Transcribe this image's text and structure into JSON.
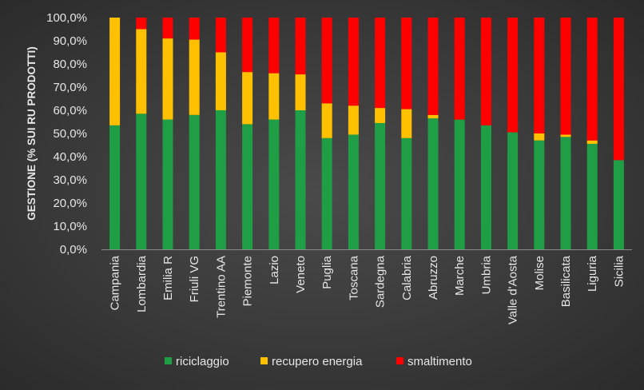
{
  "chart_data": {
    "type": "bar",
    "stacked": true,
    "title": "",
    "xlabel": "",
    "ylabel": "GESTIONE (% SUI RU PRODOTTI)",
    "ylim": [
      0,
      100
    ],
    "yticks": [
      "0,0%",
      "10,0%",
      "20,0%",
      "30,0%",
      "40,0%",
      "50,0%",
      "60,0%",
      "70,0%",
      "80,0%",
      "90,0%",
      "100,0%"
    ],
    "categories": [
      "Campania",
      "Lombardia",
      "Emilia R",
      "Friuli VG",
      "Trentino AA",
      "Piemonte",
      "Lazio",
      "Veneto",
      "Puglia",
      "Toscana",
      "Sardegna",
      "Calabria",
      "Abruzzo",
      "Marche",
      "Umbria",
      "Valle d'Aosta",
      "Molise",
      "Basilicata",
      "Liguria",
      "Sicilia"
    ],
    "series": [
      {
        "name": "riciclaggio",
        "color": "#1f9e46",
        "values": [
          53.5,
          58.5,
          56,
          58,
          60,
          54,
          56,
          60,
          48,
          49.5,
          54.5,
          48,
          56.5,
          56,
          53.5,
          50.5,
          47,
          48.5,
          45.5,
          38.5
        ]
      },
      {
        "name": "recupero energia",
        "color": "#ffc000",
        "values": [
          46.5,
          36.5,
          35,
          32.5,
          25,
          22.5,
          20,
          15.5,
          15,
          12.5,
          6.5,
          12.5,
          1.5,
          0,
          0,
          0,
          3,
          1,
          1.5,
          0
        ]
      },
      {
        "name": "smaltimento",
        "color": "#ff0000",
        "values": [
          0,
          5,
          9,
          9.5,
          15,
          23.5,
          24,
          24.5,
          37,
          38,
          39,
          39.5,
          42,
          44,
          46.5,
          49.5,
          50,
          50.5,
          53,
          61.5
        ]
      }
    ],
    "legend_position": "bottom",
    "grid": false
  }
}
